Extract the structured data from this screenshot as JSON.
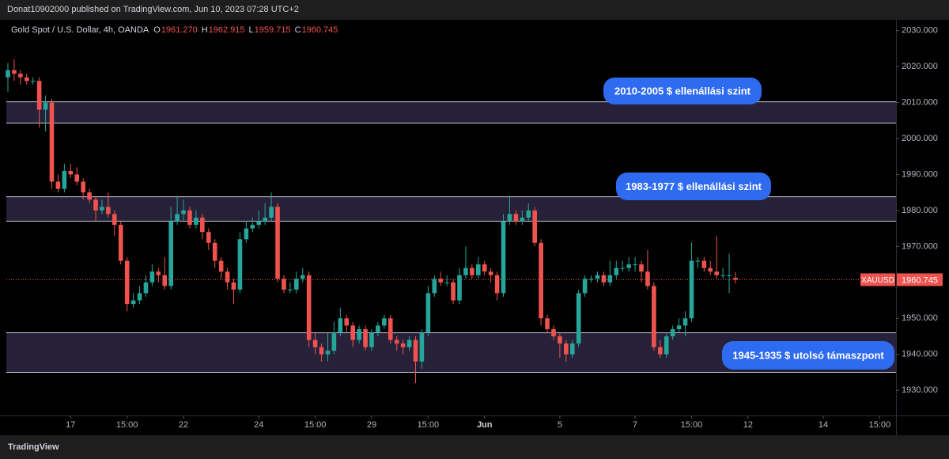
{
  "header": {
    "published": "Donat10902000 published on TradingView.com, Jun 10, 2023 07:28 UTC+2"
  },
  "footer": {
    "brand": "TradingView"
  },
  "chart_data": {
    "type": "candlestick",
    "title": "Gold Spot / U.S. Dollar, 4h, OANDA",
    "ohlc_legend": [
      {
        "key": "O",
        "value": "1961.270"
      },
      {
        "key": "H",
        "value": "1962.915"
      },
      {
        "key": "L",
        "value": "1959.715"
      },
      {
        "key": "C",
        "value": "1960.745"
      }
    ],
    "symbol": "XAUUSD",
    "last_price": 1960.745,
    "up_color": "#26a69a",
    "down_color": "#ef5350",
    "x": [
      0,
      1,
      2,
      3,
      4,
      5,
      6,
      7,
      8,
      9,
      10,
      11,
      12,
      13,
      14,
      15,
      16,
      17,
      18,
      19,
      20,
      21,
      22,
      23,
      24,
      25,
      26,
      27,
      28,
      29,
      30,
      31,
      32,
      33,
      34,
      35,
      36,
      37,
      38,
      39,
      40,
      41,
      42,
      43,
      44,
      45,
      46,
      47,
      48,
      49,
      50,
      51,
      52,
      53,
      54,
      55,
      56,
      57,
      58,
      59,
      60,
      61,
      62,
      63,
      64,
      65,
      66,
      67,
      68,
      69,
      70,
      71,
      72,
      73,
      74,
      75,
      76,
      77,
      78,
      79,
      80,
      81,
      82,
      83,
      84,
      85,
      86,
      87,
      88,
      89,
      90,
      91,
      92,
      93,
      94,
      95,
      96,
      97,
      98,
      99,
      100,
      101,
      102,
      103,
      104,
      105,
      106,
      107,
      108,
      109,
      110,
      111,
      112,
      113,
      114,
      115,
      116
    ],
    "open": [
      2017,
      2019,
      2018,
      2017,
      2016,
      2016,
      2008,
      2010,
      1988,
      1986,
      1991,
      1990,
      1988,
      1985,
      1983,
      1980,
      1981,
      1979,
      1976,
      1966,
      1954,
      1955,
      1957,
      1960,
      1963,
      1962,
      1959,
      1977,
      1979,
      1980,
      1976,
      1978,
      1974,
      1971,
      1966,
      1963,
      1960,
      1958,
      1972,
      1975,
      1976,
      1977,
      1978,
      1981,
      1961,
      1958,
      1958,
      1961,
      1962,
      1944,
      1942,
      1940,
      1941,
      1946,
      1950,
      1948,
      1944,
      1947,
      1942,
      1946,
      1948,
      1950,
      1944,
      1943,
      1942,
      1944,
      1938,
      1946,
      1957,
      1961,
      1960,
      1960,
      1955,
      1962,
      1964,
      1962,
      1965,
      1963,
      1962,
      1957,
      1977,
      1979,
      1977,
      1978,
      1980,
      1971,
      1950,
      1947,
      1945,
      1943,
      1940,
      1943,
      1957,
      1961,
      1961,
      1962,
      1960,
      1962,
      1964,
      1964,
      1965,
      1965,
      1963,
      1959,
      1942,
      1940,
      1945,
      1947,
      1948,
      1950,
      1966,
      1966,
      1964,
      1963,
      1962,
      1962,
      1961.27
    ],
    "high": [
      2021,
      2022,
      2019,
      2018,
      2017,
      2017,
      2012,
      2011,
      1990,
      1993,
      1993,
      1992,
      1989,
      1986,
      1984,
      1983,
      1985,
      1980,
      1977,
      1967,
      1957,
      1959,
      1962,
      1965,
      1964,
      1967,
      1981,
      1984,
      1983,
      1981,
      1980,
      1979,
      1975,
      1972,
      1967,
      1964,
      1961,
      1974,
      1977,
      1978,
      1980,
      1982,
      1985,
      1982,
      1962,
      1960,
      1963,
      1964,
      1963,
      1946,
      1943,
      1946,
      1949,
      1953,
      1951,
      1949,
      1948,
      1948,
      1947,
      1949,
      1951,
      1951,
      1945,
      1944,
      1945,
      1945,
      1947,
      1959,
      1962,
      1963,
      1962,
      1961,
      1964,
      1970,
      1965,
      1967,
      1966,
      1964,
      1963,
      1979,
      1984,
      1980,
      1980,
      1982,
      1981,
      1972,
      1951,
      1948,
      1946,
      1944,
      1944,
      1958,
      1962,
      1962,
      1963,
      1963,
      1966,
      1966,
      1966,
      1967,
      1967,
      1966,
      1969,
      1960,
      1944,
      1946,
      1948,
      1950,
      1952,
      1971,
      1967,
      1967,
      1966,
      1973,
      1964,
      1968,
      1962.915
    ],
    "low": [
      2013,
      2016,
      2015,
      2015,
      2015,
      2003,
      2002,
      1986,
      1985,
      1985,
      1989,
      1987,
      1983,
      1982,
      1977,
      1979,
      1978,
      1973,
      1965,
      1952,
      1953,
      1954,
      1956,
      1959,
      1960,
      1958,
      1958,
      1976,
      1977,
      1975,
      1975,
      1972,
      1969,
      1964,
      1961,
      1958,
      1954,
      1957,
      1971,
      1974,
      1975,
      1976,
      1977,
      1960,
      1957,
      1957,
      1957,
      1960,
      1942,
      1940,
      1938,
      1938,
      1940,
      1945,
      1946,
      1942,
      1943,
      1941,
      1941,
      1945,
      1947,
      1943,
      1941,
      1940,
      1941,
      1932,
      1936,
      1945,
      1956,
      1959,
      1959,
      1954,
      1954,
      1961,
      1961,
      1961,
      1962,
      1960,
      1955,
      1956,
      1976,
      1976,
      1976,
      1977,
      1970,
      1948,
      1946,
      1944,
      1939,
      1938,
      1939,
      1942,
      1956,
      1960,
      1960,
      1959,
      1959,
      1961,
      1963,
      1963,
      1963,
      1960,
      1958,
      1941,
      1939,
      1939,
      1944,
      1946,
      1945,
      1949,
      1964,
      1963,
      1962,
      1961,
      1961,
      1957,
      1959.715
    ],
    "close": [
      2019,
      2018,
      2017,
      2016,
      2016,
      2008,
      2010,
      1988,
      1986,
      1991,
      1990,
      1988,
      1985,
      1983,
      1980,
      1981,
      1979,
      1976,
      1966,
      1954,
      1955,
      1957,
      1960,
      1963,
      1962,
      1959,
      1977,
      1979,
      1980,
      1976,
      1978,
      1974,
      1971,
      1966,
      1963,
      1960,
      1958,
      1972,
      1975,
      1976,
      1977,
      1978,
      1981,
      1961,
      1958,
      1958,
      1961,
      1962,
      1944,
      1942,
      1940,
      1941,
      1946,
      1950,
      1948,
      1944,
      1947,
      1942,
      1946,
      1948,
      1950,
      1944,
      1943,
      1942,
      1944,
      1938,
      1946,
      1957,
      1961,
      1960,
      1960,
      1955,
      1962,
      1964,
      1962,
      1965,
      1963,
      1962,
      1957,
      1977,
      1979,
      1977,
      1978,
      1980,
      1971,
      1950,
      1947,
      1945,
      1943,
      1940,
      1943,
      1957,
      1961,
      1961,
      1962,
      1960,
      1962,
      1964,
      1964,
      1965,
      1965,
      1963,
      1959,
      1942,
      1940,
      1945,
      1947,
      1948,
      1950,
      1966,
      1966,
      1964,
      1963,
      1962,
      1962,
      1962,
      1960.745
    ],
    "xlim": [
      -0.25,
      141.6
    ],
    "xticks": [
      {
        "value": 10,
        "label": "17"
      },
      {
        "value": 19,
        "label": "15:00"
      },
      {
        "value": 28,
        "label": "22"
      },
      {
        "value": 40,
        "label": "24"
      },
      {
        "value": 49,
        "label": "15:00"
      },
      {
        "value": 58,
        "label": "29"
      },
      {
        "value": 67,
        "label": "15:00"
      },
      {
        "value": 76,
        "label": "Jun"
      },
      {
        "value": 88,
        "label": "5"
      },
      {
        "value": 100,
        "label": "7"
      },
      {
        "value": 109,
        "label": "15:00"
      },
      {
        "value": 118,
        "label": "12"
      },
      {
        "value": 130,
        "label": "14"
      },
      {
        "value": 139,
        "label": "15:00"
      }
    ],
    "ylim": [
      1923,
      2033
    ],
    "yticks": [
      {
        "value": 1930,
        "label": "1930.000"
      },
      {
        "value": 1940,
        "label": "1940.000"
      },
      {
        "value": 1950,
        "label": "1950.000"
      },
      {
        "value": 1960,
        "label": "1960.000"
      },
      {
        "value": 1970,
        "label": "1970.000"
      },
      {
        "value": 1980,
        "label": "1980.000"
      },
      {
        "value": 1990,
        "label": "1990.000"
      },
      {
        "value": 2000,
        "label": "2000.000"
      },
      {
        "value": 2010,
        "label": "2010.000"
      },
      {
        "value": 2020,
        "label": "2020.000"
      },
      {
        "value": 2030,
        "label": "2030.000"
      }
    ],
    "zones": [
      {
        "low": 2004.3,
        "high": 2010.2,
        "label": "2010-2005 $ ellenállási szint"
      },
      {
        "low": 1977,
        "high": 1983.8,
        "label": "1983-1977 $ ellenállási szint"
      },
      {
        "low": 1935,
        "high": 1946,
        "label": "1945-1935 $ utolsó támaszpont"
      }
    ]
  }
}
